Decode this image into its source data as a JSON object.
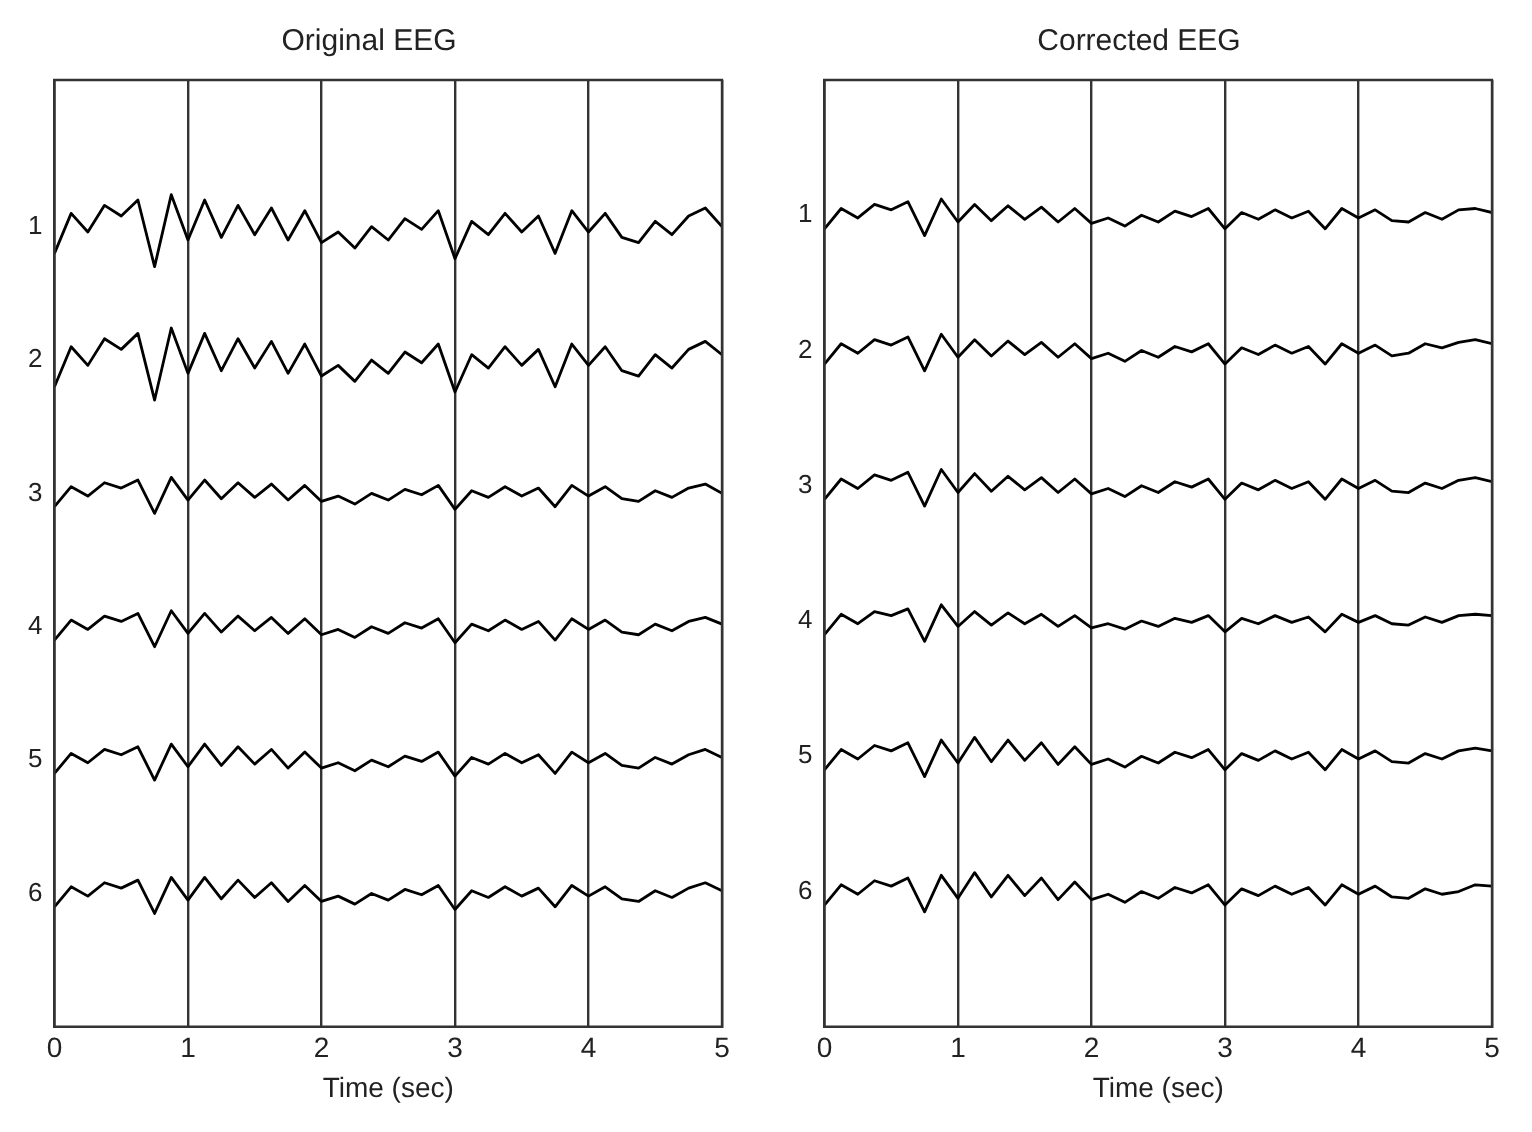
{
  "chart_data": [
    {
      "type": "line",
      "title": "Original EEG",
      "xlabel": "Time (sec)",
      "x": [
        0,
        0.125,
        0.25,
        0.375,
        0.5,
        0.625,
        0.75,
        0.875,
        1,
        1.125,
        1.25,
        1.375,
        1.5,
        1.625,
        1.75,
        1.875,
        2,
        2.125,
        2.25,
        2.375,
        2.5,
        2.625,
        2.75,
        2.875,
        3,
        3.125,
        3.25,
        3.375,
        3.5,
        3.625,
        3.75,
        3.875,
        4,
        4.125,
        4.25,
        4.375,
        4.5,
        4.625,
        4.75,
        4.875,
        5
      ],
      "xlim": [
        0,
        5
      ],
      "xticks": [
        0,
        1,
        2,
        3,
        4,
        5
      ],
      "ylim": [
        7.0,
        -0.1
      ],
      "yticks": [
        1,
        2,
        3,
        4,
        5,
        6
      ],
      "grid": "x",
      "marker": "none",
      "line_style": "solid",
      "series": [
        {
          "color": "#000000",
          "values": [
            1.2,
            0.9,
            1.04,
            0.84,
            0.92,
            0.8,
            1.3,
            0.76,
            1.1,
            0.8,
            1.08,
            0.84,
            1.06,
            0.86,
            1.1,
            0.88,
            1.12,
            1.04,
            1.16,
            1,
            1.1,
            0.94,
            1.02,
            0.88,
            1.24,
            0.96,
            1.06,
            0.9,
            1.04,
            0.92,
            1.2,
            0.88,
            1.04,
            0.9,
            1.08,
            1.12,
            0.96,
            1.06,
            0.92,
            0.86,
            1
          ]
        },
        {
          "color": "#000000",
          "values": [
            2.2,
            1.9,
            2.04,
            1.84,
            1.92,
            1.8,
            2.3,
            1.76,
            2.1,
            1.8,
            2.08,
            1.84,
            2.06,
            1.86,
            2.1,
            1.88,
            2.12,
            2.04,
            2.16,
            2,
            2.1,
            1.94,
            2.02,
            1.88,
            2.24,
            1.96,
            2.06,
            1.9,
            2.04,
            1.92,
            2.2,
            1.88,
            2.04,
            1.9,
            2.08,
            2.12,
            1.96,
            2.06,
            1.92,
            1.86,
            1.96
          ]
        },
        {
          "color": "#000000",
          "values": [
            3.1,
            2.95,
            3.02,
            2.92,
            2.96,
            2.9,
            3.15,
            2.88,
            3.05,
            2.9,
            3.04,
            2.92,
            3.03,
            2.93,
            3.05,
            2.94,
            3.06,
            3.02,
            3.08,
            3,
            3.05,
            2.97,
            3.01,
            2.94,
            3.12,
            2.98,
            3.03,
            2.95,
            3.02,
            2.96,
            3.1,
            2.94,
            3.02,
            2.95,
            3.04,
            3.06,
            2.98,
            3.03,
            2.96,
            2.93,
            3
          ]
        },
        {
          "color": "#000000",
          "values": [
            4.1,
            3.95,
            4.02,
            3.92,
            3.96,
            3.9,
            4.15,
            3.88,
            4.05,
            3.9,
            4.04,
            3.92,
            4.03,
            3.93,
            4.05,
            3.94,
            4.06,
            4.02,
            4.08,
            4,
            4.05,
            3.97,
            4.01,
            3.94,
            4.12,
            3.98,
            4.03,
            3.95,
            4.02,
            3.96,
            4.1,
            3.94,
            4.02,
            3.95,
            4.04,
            4.06,
            3.98,
            4.03,
            3.96,
            3.93,
            3.98
          ]
        },
        {
          "color": "#000000",
          "values": [
            5.1,
            4.95,
            5.02,
            4.92,
            4.96,
            4.9,
            5.15,
            4.88,
            5.05,
            4.88,
            5.04,
            4.9,
            5.03,
            4.92,
            5.06,
            4.94,
            5.06,
            5.02,
            5.08,
            5,
            5.05,
            4.97,
            5.01,
            4.94,
            5.12,
            4.98,
            5.03,
            4.95,
            5.02,
            4.96,
            5.1,
            4.94,
            5.02,
            4.95,
            5.04,
            5.06,
            4.98,
            5.03,
            4.96,
            4.92,
            4.98
          ]
        },
        {
          "color": "#000000",
          "values": [
            6.1,
            5.95,
            6.02,
            5.92,
            5.96,
            5.9,
            6.15,
            5.88,
            6.05,
            5.88,
            6.04,
            5.9,
            6.03,
            5.92,
            6.06,
            5.94,
            6.06,
            6.02,
            6.08,
            6,
            6.05,
            5.97,
            6.01,
            5.94,
            6.12,
            5.98,
            6.03,
            5.95,
            6.02,
            5.96,
            6.1,
            5.94,
            6.02,
            5.95,
            6.04,
            6.06,
            5.98,
            6.03,
            5.96,
            5.92,
            5.98
          ]
        }
      ]
    },
    {
      "type": "line",
      "title": "Corrected EEG",
      "xlabel": "Time (sec)",
      "x": [
        0,
        0.125,
        0.25,
        0.375,
        0.5,
        0.625,
        0.75,
        0.875,
        1,
        1.125,
        1.25,
        1.375,
        1.5,
        1.625,
        1.75,
        1.875,
        2,
        2.125,
        2.25,
        2.375,
        2.5,
        2.625,
        2.75,
        2.875,
        3,
        3.125,
        3.25,
        3.375,
        3.5,
        3.625,
        3.75,
        3.875,
        4,
        4.125,
        4.25,
        4.375,
        4.5,
        4.625,
        4.75,
        4.875,
        5
      ],
      "xlim": [
        0,
        5
      ],
      "xticks": [
        0,
        1,
        2,
        3,
        4,
        5
      ],
      "ylim": [
        7.0,
        0.0
      ],
      "yticks": [
        1,
        2,
        3,
        4,
        5,
        6
      ],
      "grid": "x",
      "marker": "none",
      "line_style": "solid",
      "series": [
        {
          "color": "#000000",
          "values": [
            1.1,
            0.95,
            1.02,
            0.92,
            0.96,
            0.9,
            1.15,
            0.88,
            1.05,
            0.92,
            1.04,
            0.93,
            1.03,
            0.94,
            1.05,
            0.95,
            1.06,
            1.02,
            1.08,
            1,
            1.05,
            0.97,
            1.01,
            0.95,
            1.1,
            0.98,
            1.03,
            0.96,
            1.02,
            0.97,
            1.1,
            0.95,
            1.02,
            0.96,
            1.04,
            1.05,
            0.98,
            1.03,
            0.96,
            0.95,
            0.98
          ]
        },
        {
          "color": "#000000",
          "values": [
            2.1,
            1.95,
            2.02,
            1.92,
            1.96,
            1.9,
            2.15,
            1.88,
            2.05,
            1.92,
            2.04,
            1.93,
            2.03,
            1.94,
            2.05,
            1.95,
            2.06,
            2.02,
            2.08,
            2,
            2.05,
            1.97,
            2.01,
            1.95,
            2.1,
            1.98,
            2.03,
            1.96,
            2.02,
            1.97,
            2.1,
            1.95,
            2.02,
            1.96,
            2.04,
            2.02,
            1.95,
            1.98,
            1.94,
            1.92,
            1.95
          ]
        },
        {
          "color": "#000000",
          "values": [
            3.1,
            2.95,
            3.02,
            2.92,
            2.96,
            2.9,
            3.15,
            2.88,
            3.05,
            2.91,
            3.04,
            2.93,
            3.03,
            2.94,
            3.05,
            2.95,
            3.06,
            3.02,
            3.08,
            3,
            3.05,
            2.97,
            3.01,
            2.95,
            3.1,
            2.98,
            3.03,
            2.96,
            3.02,
            2.97,
            3.1,
            2.95,
            3.02,
            2.96,
            3.04,
            3.05,
            2.98,
            3.02,
            2.96,
            2.94,
            2.97
          ]
        },
        {
          "color": "#000000",
          "values": [
            4.1,
            3.95,
            4.02,
            3.93,
            3.96,
            3.91,
            4.15,
            3.88,
            4.04,
            3.93,
            4.03,
            3.94,
            4.02,
            3.95,
            4.04,
            3.96,
            4.05,
            4.02,
            4.06,
            4,
            4.04,
            3.98,
            4.01,
            3.96,
            4.08,
            3.98,
            4.02,
            3.96,
            4.01,
            3.97,
            4.08,
            3.95,
            4.01,
            3.96,
            4.02,
            4.03,
            3.97,
            4.01,
            3.96,
            3.95,
            3.96
          ]
        },
        {
          "color": "#000000",
          "values": [
            5.1,
            4.95,
            5.02,
            4.92,
            4.96,
            4.9,
            5.15,
            4.88,
            5.05,
            4.86,
            5.04,
            4.88,
            5.03,
            4.9,
            5.06,
            4.93,
            5.06,
            5.02,
            5.08,
            5,
            5.05,
            4.97,
            5.01,
            4.95,
            5.1,
            4.98,
            5.03,
            4.96,
            5.02,
            4.97,
            5.1,
            4.95,
            5.02,
            4.96,
            5.04,
            5.05,
            4.98,
            5.02,
            4.96,
            4.94,
            4.96
          ]
        },
        {
          "color": "#000000",
          "values": [
            6.1,
            5.95,
            6.02,
            5.92,
            5.96,
            5.9,
            6.15,
            5.88,
            6.05,
            5.86,
            6.04,
            5.88,
            6.03,
            5.9,
            6.06,
            5.93,
            6.06,
            6.02,
            6.08,
            6,
            6.05,
            5.97,
            6.01,
            5.95,
            6.1,
            5.98,
            6.03,
            5.96,
            6.02,
            5.97,
            6.1,
            5.95,
            6.02,
            5.96,
            6.04,
            6.05,
            5.98,
            6.02,
            6.0,
            5.95,
            5.96
          ]
        }
      ]
    }
  ]
}
